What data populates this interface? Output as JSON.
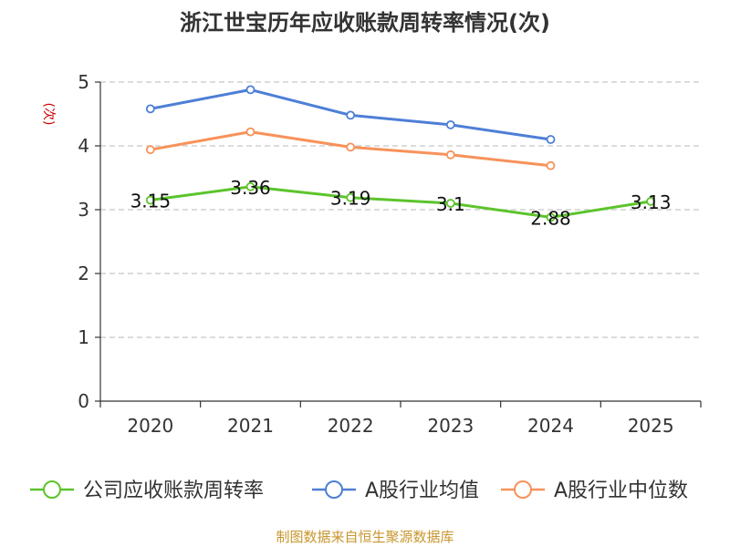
{
  "chart_data": {
    "type": "line",
    "title": "浙江世宝历年应收账款周转率情况(次)",
    "ylabel": "(次)",
    "xlabel": "",
    "categories": [
      "2020",
      "2021",
      "2022",
      "2023",
      "2024",
      "2025"
    ],
    "ylim": [
      0,
      5
    ],
    "yticks": [
      0,
      1,
      2,
      3,
      4,
      5
    ],
    "grid": true,
    "legend_position": "bottom",
    "series": [
      {
        "name": "公司应收账款周转率",
        "color": "#5cc42c",
        "values": [
          3.15,
          3.36,
          3.19,
          3.1,
          2.88,
          3.13
        ],
        "labels": [
          "3.15",
          "3.36",
          "3.19",
          "3.1",
          "2.88",
          "3.13"
        ]
      },
      {
        "name": "A股行业均值",
        "color": "#4d7fd6",
        "values": [
          4.58,
          4.88,
          4.48,
          4.33,
          4.1,
          null
        ],
        "labels": []
      },
      {
        "name": "A股行业中位数",
        "color": "#f7925a",
        "values": [
          3.94,
          4.22,
          3.98,
          3.86,
          3.69,
          null
        ],
        "labels": []
      }
    ],
    "source": "制图数据来自恒生聚源数据库"
  },
  "colors": {
    "title": "#333333",
    "axis": "#333333",
    "grid": "#c8c8c8",
    "ylabel": "#cc0000",
    "source": "#c8962d"
  }
}
